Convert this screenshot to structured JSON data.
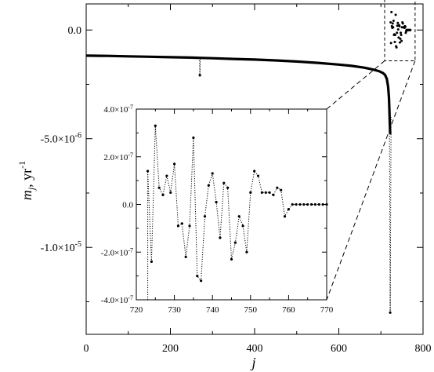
{
  "chart_data": [
    {
      "type": "scatter",
      "xlabel": "j",
      "ylabel_main": "m",
      "ylabel_sub": "j",
      "ylabel_unit": ", yr",
      "ylabel_exp": "-1",
      "xlim": [
        0,
        800
      ],
      "ylim": [
        -1.4e-05,
        1.2e-06
      ],
      "xticks": [
        0,
        200,
        400,
        600,
        800
      ],
      "xtick_labels": [
        "0",
        "200",
        "400",
        "600",
        "800"
      ],
      "yticks": [
        0,
        -5e-06,
        -1e-05
      ],
      "ytick_labels": [
        "0.0",
        "-5.0×10⁻⁶",
        "-1.0×10⁻⁵"
      ],
      "ytick_parts": [
        {
          "base": "0.0",
          "exp": ""
        },
        {
          "base": "-5.0×10",
          "exp": "-6"
        },
        {
          "base": "-1.0×10",
          "exp": "-5"
        }
      ],
      "series": [
        {
          "style": "dense-points",
          "x": [
            0,
            50,
            100,
            150,
            200,
            250,
            300,
            350,
            400,
            450,
            500,
            550,
            600,
            630,
            660,
            680,
            695,
            705,
            710,
            714,
            717,
            719,
            720,
            721,
            722
          ],
          "y": [
            -1.18e-06,
            -1.19e-06,
            -1.21e-06,
            -1.23e-06,
            -1.25e-06,
            -1.27e-06,
            -1.3e-06,
            -1.33e-06,
            -1.36e-06,
            -1.4e-06,
            -1.45e-06,
            -1.51e-06,
            -1.59e-06,
            -1.65e-06,
            -1.73e-06,
            -1.81e-06,
            -1.89e-06,
            -1.98e-06,
            -2.07e-06,
            -2.25e-06,
            -2.6e-06,
            -3.1e-06,
            -3.6e-06,
            -4.2e-06,
            -4.8e-06
          ]
        },
        {
          "style": "dotted-spike",
          "x": [
            269,
            270,
            271
          ],
          "y": [
            -1.28e-06,
            -2.08e-06,
            -1.28e-06
          ]
        },
        {
          "style": "dotted-spike",
          "x": [
            720,
            722,
            724
          ],
          "y": [
            -3.6e-06,
            -1.3e-05,
            -4e-06
          ]
        }
      ],
      "inset_box": {
        "x": [
          720,
          770
        ],
        "y": [
          -4e-07,
          4e-07
        ]
      }
    },
    {
      "type": "line",
      "style": "dotted line with point markers",
      "xlim": [
        720,
        770
      ],
      "ylim": [
        -4e-07,
        4e-07
      ],
      "xticks": [
        720,
        730,
        740,
        750,
        760,
        770
      ],
      "xtick_labels": [
        "720",
        "730",
        "740",
        "750",
        "760",
        "770"
      ],
      "yticks": [
        4e-07,
        2e-07,
        0,
        -2e-07,
        -4e-07
      ],
      "ytick_labels": [
        "4.0×10⁻⁷",
        "2.0×10⁻⁷",
        "0.0",
        "-2.0×10⁻⁷",
        "-4.0×10⁻⁷"
      ],
      "ytick_parts": [
        {
          "base": "4.0×10",
          "exp": "-7"
        },
        {
          "base": "2.0×10",
          "exp": "-7"
        },
        {
          "base": "0.0",
          "exp": ""
        },
        {
          "base": "-2.0×10",
          "exp": "-7"
        },
        {
          "base": "-4.0×10",
          "exp": "-7"
        }
      ],
      "x": [
        723,
        724,
        725,
        726,
        727,
        728,
        729,
        730,
        731,
        732,
        733,
        734,
        735,
        736,
        737,
        738,
        739,
        740,
        741,
        742,
        743,
        744,
        745,
        746,
        747,
        748,
        749,
        750,
        751,
        752,
        753,
        754,
        755,
        756,
        757,
        758,
        759,
        760,
        761,
        762,
        763,
        764,
        765,
        766,
        767,
        768,
        769,
        770
      ],
      "y": [
        1.4e-07,
        -2.4e-07,
        3.3e-07,
        7e-08,
        4e-08,
        1.2e-07,
        5e-08,
        1.7e-07,
        -9e-08,
        -8e-08,
        -2.2e-07,
        -9e-08,
        2.8e-07,
        -3e-07,
        -3.2e-07,
        -5e-08,
        8e-08,
        1.3e-07,
        1e-08,
        -1.4e-07,
        9e-08,
        7e-08,
        -2.3e-07,
        -1.6e-07,
        -5e-08,
        -9e-08,
        -2e-07,
        5e-08,
        1.4e-07,
        1.2e-07,
        5e-08,
        5e-08,
        5e-08,
        4e-08,
        7e-08,
        6e-08,
        -5e-08,
        -2e-08,
        0,
        0,
        0,
        0,
        0,
        0,
        0,
        0,
        0,
        0
      ]
    }
  ]
}
